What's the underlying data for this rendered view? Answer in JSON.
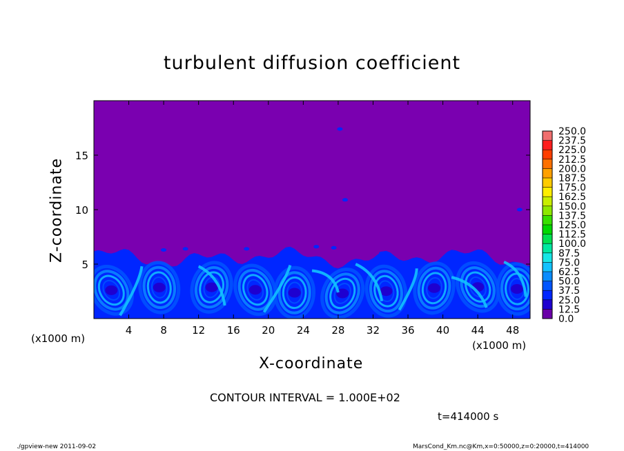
{
  "chart_data": {
    "type": "heatmap",
    "title": "turbulent diffusion coefficient",
    "xlabel": "X-coordinate",
    "ylabel": "Z-coordinate",
    "x_unit": "(x1000 m)",
    "xlim": [
      0,
      50
    ],
    "ylim": [
      0,
      20
    ],
    "x_ticks": [
      4,
      8,
      12,
      16,
      20,
      24,
      28,
      32,
      36,
      40,
      44,
      48
    ],
    "y_ticks": [
      5,
      10,
      15
    ],
    "colorbar": {
      "levels": [
        "0.0",
        "12.5",
        "25.0",
        "37.5",
        "50.0",
        "62.5",
        "75.0",
        "87.5",
        "100.0",
        "112.5",
        "125.0",
        "137.5",
        "150.0",
        "162.5",
        "175.0",
        "187.5",
        "200.0",
        "212.5",
        "225.0",
        "237.5",
        "250.0"
      ],
      "colors": [
        "#6a00a8",
        "#1e00d0",
        "#0026ff",
        "#0055ff",
        "#0a8cff",
        "#12c2ff",
        "#17e6e6",
        "#00e8a0",
        "#00e050",
        "#00d800",
        "#38e000",
        "#8ee800",
        "#c8ee00",
        "#ffee00",
        "#ffcc00",
        "#ffa000",
        "#ff7000",
        "#ff3e00",
        "#ff1e1e",
        "#f06e6e"
      ]
    },
    "background_value_color": "#7a00b0",
    "turbulent_layer_top": 5.6,
    "contour_interval": "CONTOUR INTERVAL = 1.000E+02",
    "time_label": "t=414000 s"
  },
  "footer": {
    "left": "./gpview-new  2011-09-02",
    "right": "MarsCond_Km.nc@Km,x=0:50000,z=0:20000,t=414000"
  }
}
